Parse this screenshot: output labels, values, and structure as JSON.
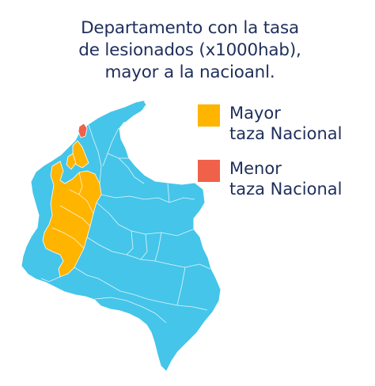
{
  "title": {
    "line1": "Departamento con la tasa",
    "line2": "de lesionados (x1000hab),",
    "line3": "mayor a la nacioanl."
  },
  "legend": [
    {
      "line1": "Mayor",
      "line2": "taza Nacional",
      "color": "#ffb400",
      "icon": "square-swatch"
    },
    {
      "line1": "Menor",
      "line2": "taza Nacional",
      "color": "#f0614a",
      "icon": "square-swatch"
    }
  ],
  "colors": {
    "base": "#45c5e9",
    "above": "#ffb400",
    "below": "#f0614a",
    "border": "#ffffff",
    "text": "#1f2f5c"
  },
  "map": {
    "country": "Colombia",
    "highlighted_above_national_rate": "central-western departments (orange)",
    "highlighted_below_national_rate": "northern coastal department (red)"
  }
}
